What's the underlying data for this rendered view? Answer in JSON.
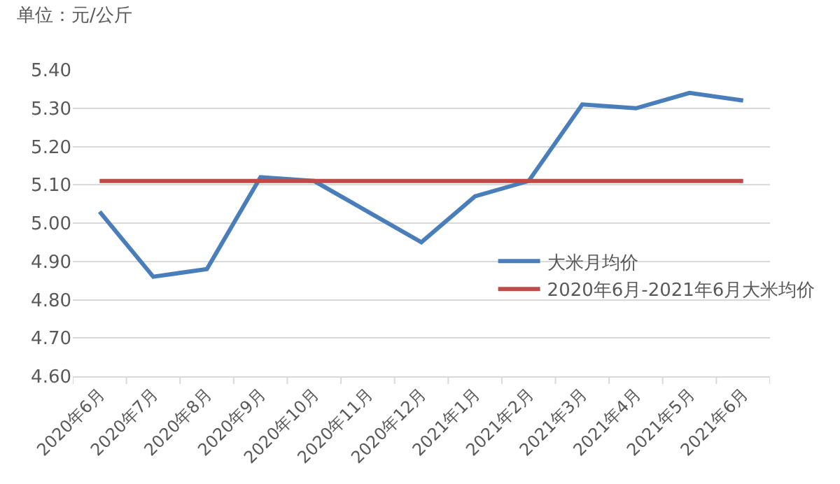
{
  "chart_data": {
    "type": "line",
    "annotations": [
      "单位：元/公斤"
    ],
    "categories": [
      "2020年6月",
      "2020年7月",
      "2020年8月",
      "2020年9月",
      "2020年10月",
      "2020年11月",
      "2020年12月",
      "2021年1月",
      "2021年2月",
      "2021年3月",
      "2021年4月",
      "2021年5月",
      "2021年6月"
    ],
    "series": [
      {
        "name": "大米月均价",
        "color": "#4a7ebb",
        "values": [
          5.03,
          4.86,
          4.88,
          5.12,
          5.11,
          5.03,
          4.95,
          5.07,
          5.11,
          5.31,
          5.3,
          5.34,
          5.32
        ]
      },
      {
        "name": "2020年6月-2021年6月大米均价",
        "color": "#be4b48",
        "values": [
          5.11,
          5.11,
          5.11,
          5.11,
          5.11,
          5.11,
          5.11,
          5.11,
          5.11,
          5.11,
          5.11,
          5.11,
          5.11
        ]
      }
    ],
    "ylim": [
      4.6,
      5.4
    ],
    "yticks": [
      {
        "value": 4.6,
        "label": "4.60"
      },
      {
        "value": 4.7,
        "label": "4.70"
      },
      {
        "value": 4.8,
        "label": "4.80"
      },
      {
        "value": 4.9,
        "label": "4.90"
      },
      {
        "value": 5.0,
        "label": "5.00"
      },
      {
        "value": 5.1,
        "label": "5.10"
      },
      {
        "value": 5.2,
        "label": "5.20"
      },
      {
        "value": 5.3,
        "label": "5.30"
      },
      {
        "value": 5.4,
        "label": "5.40"
      }
    ],
    "grid": "y",
    "legend": "right",
    "marker": "none",
    "line_style": "solid"
  }
}
